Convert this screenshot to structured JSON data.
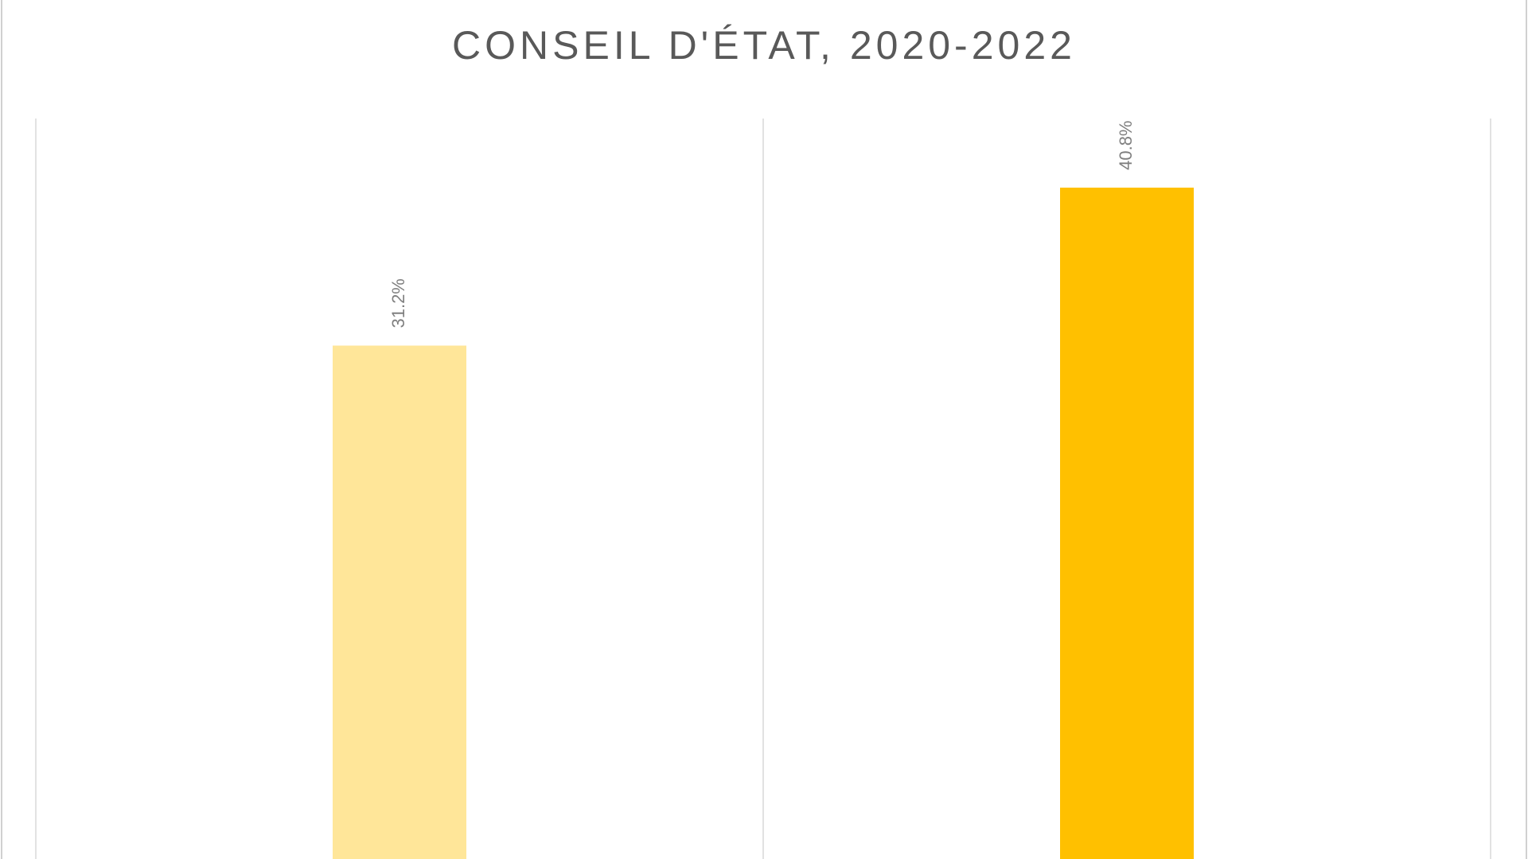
{
  "chart_data": {
    "type": "bar",
    "title": "CONSEIL D'ÉTAT, 2020-2022",
    "categories": [
      null,
      null
    ],
    "values": [
      31.2,
      40.8
    ],
    "value_labels": [
      "31.2%",
      "40.8%"
    ],
    "colors": [
      "#FFE699",
      "#FFC000"
    ],
    "ylim": [
      0,
      45
    ]
  }
}
